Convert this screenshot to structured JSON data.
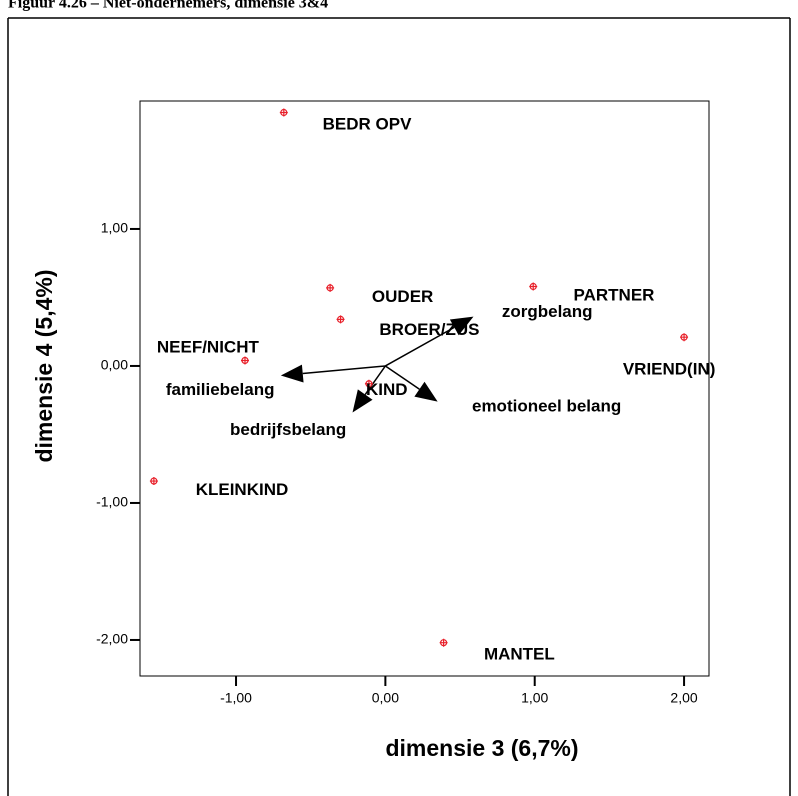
{
  "chart_data": {
    "type": "scatter",
    "title": "Figuur 4.26 – Niet-ondernemers, dimensie 3&4",
    "x_label": "dimensie 3 (6,7%)",
    "y_label": "dimensie 4 (5,4%)",
    "xlim": [
      -1.643,
      2.167
    ],
    "ylim": [
      -2.263,
      1.934
    ],
    "xticks": [
      {
        "value": -1,
        "label": "-1,00"
      },
      {
        "value": 0,
        "label": "0,00"
      },
      {
        "value": 1,
        "label": "1,00"
      },
      {
        "value": 2,
        "label": "2,00"
      }
    ],
    "yticks": [
      {
        "value": -2,
        "label": "-2,00"
      },
      {
        "value": -1,
        "label": "-1,00"
      },
      {
        "value": 0,
        "label": "0,00"
      },
      {
        "value": 1,
        "label": "1,00"
      }
    ],
    "color": "#e8202a",
    "x": [
      -0.68,
      -0.37,
      -0.3,
      0.99,
      2.0,
      -0.94,
      -0.11,
      -1.55,
      0.39
    ],
    "values": [
      1.85,
      0.57,
      0.34,
      0.58,
      0.21,
      0.04,
      -0.13,
      -0.84,
      -2.02
    ],
    "vectors": {
      "x": [
        0.59,
        -0.7,
        -0.22,
        0.35
      ],
      "y": [
        0.36,
        -0.07,
        -0.34,
        -0.26
      ]
    },
    "annotations": [
      {
        "text": "BEDR OPV",
        "x": -0.42,
        "y": 1.76
      },
      {
        "text": "OUDER",
        "x": -0.09,
        "y": 0.5
      },
      {
        "text": "BROER/ZUS",
        "x": -0.04,
        "y": 0.26
      },
      {
        "text": "PARTNER",
        "x": 1.26,
        "y": 0.51
      },
      {
        "text": "zorgbelang",
        "x": 0.78,
        "y": 0.39
      },
      {
        "text": "NEEF/NICHT",
        "x": -1.53,
        "y": 0.13
      },
      {
        "text": "VRIEND(IN)",
        "x": 1.59,
        "y": -0.03
      },
      {
        "text": "familiebelang",
        "x": -1.47,
        "y": -0.18
      },
      {
        "text": "KIND",
        "x": -0.13,
        "y": -0.18
      },
      {
        "text": "emotioneel belang",
        "x": 0.58,
        "y": -0.3
      },
      {
        "text": "bedrijfsbelang",
        "x": -1.04,
        "y": -0.47
      },
      {
        "text": "KLEINKIND",
        "x": -1.27,
        "y": -0.91
      },
      {
        "text": "MANTEL",
        "x": 0.66,
        "y": -2.11
      }
    ]
  }
}
